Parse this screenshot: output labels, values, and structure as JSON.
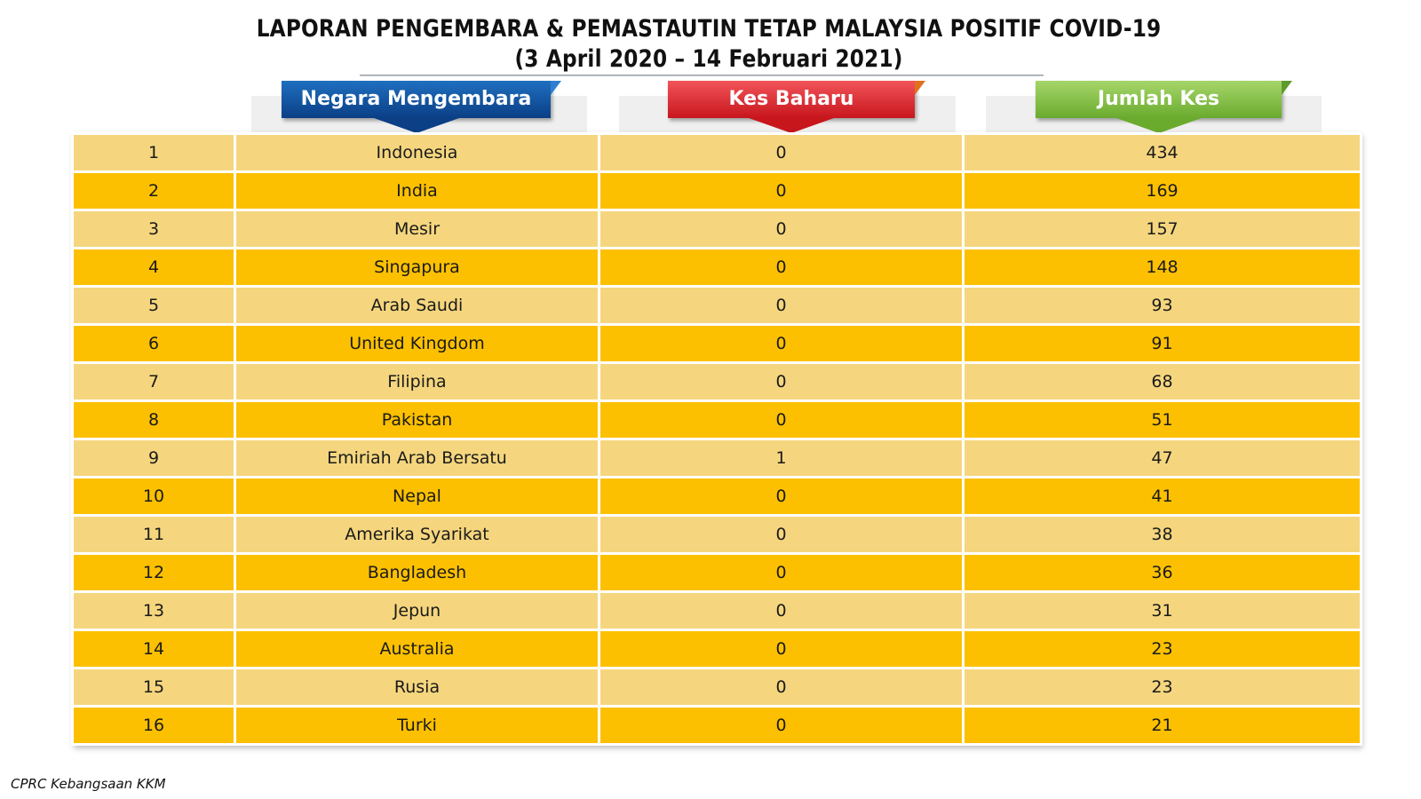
{
  "title": {
    "line1": "LAPORAN PENGEMBARA & PEMASTAUTIN TETAP MALAYSIA POSITIF COVID-19",
    "line2": "(3 April 2020 – 14 Februari 2021)"
  },
  "headers": {
    "country": "Negara Mengembara",
    "new_cases": "Kes Baharu",
    "total_cases": "Jumlah Kes"
  },
  "colors": {
    "row_light": "#f5d67e",
    "row_dark": "#fcc000",
    "header_country": "#0b3f86",
    "header_new_cases": "#c8161d",
    "header_total_cases": "#6aab2e"
  },
  "rows": [
    {
      "no": "1",
      "country": "Indonesia",
      "new": "0",
      "total": "434"
    },
    {
      "no": "2",
      "country": "India",
      "new": "0",
      "total": "169"
    },
    {
      "no": "3",
      "country": "Mesir",
      "new": "0",
      "total": "157"
    },
    {
      "no": "4",
      "country": "Singapura",
      "new": "0",
      "total": "148"
    },
    {
      "no": "5",
      "country": "Arab Saudi",
      "new": "0",
      "total": "93"
    },
    {
      "no": "6",
      "country": "United Kingdom",
      "new": "0",
      "total": "91"
    },
    {
      "no": "7",
      "country": "Filipina",
      "new": "0",
      "total": "68"
    },
    {
      "no": "8",
      "country": "Pakistan",
      "new": "0",
      "total": "51"
    },
    {
      "no": "9",
      "country": "Emiriah Arab Bersatu",
      "new": "1",
      "total": "47"
    },
    {
      "no": "10",
      "country": "Nepal",
      "new": "0",
      "total": "41"
    },
    {
      "no": "11",
      "country": "Amerika Syarikat",
      "new": "0",
      "total": "38"
    },
    {
      "no": "12",
      "country": "Bangladesh",
      "new": "0",
      "total": "36"
    },
    {
      "no": "13",
      "country": "Jepun",
      "new": "0",
      "total": "31"
    },
    {
      "no": "14",
      "country": "Australia",
      "new": "0",
      "total": "23"
    },
    {
      "no": "15",
      "country": "Rusia",
      "new": "0",
      "total": "23"
    },
    {
      "no": "16",
      "country": "Turki",
      "new": "0",
      "total": "21"
    }
  ],
  "footer": "CPRC Kebangsaan KKM"
}
